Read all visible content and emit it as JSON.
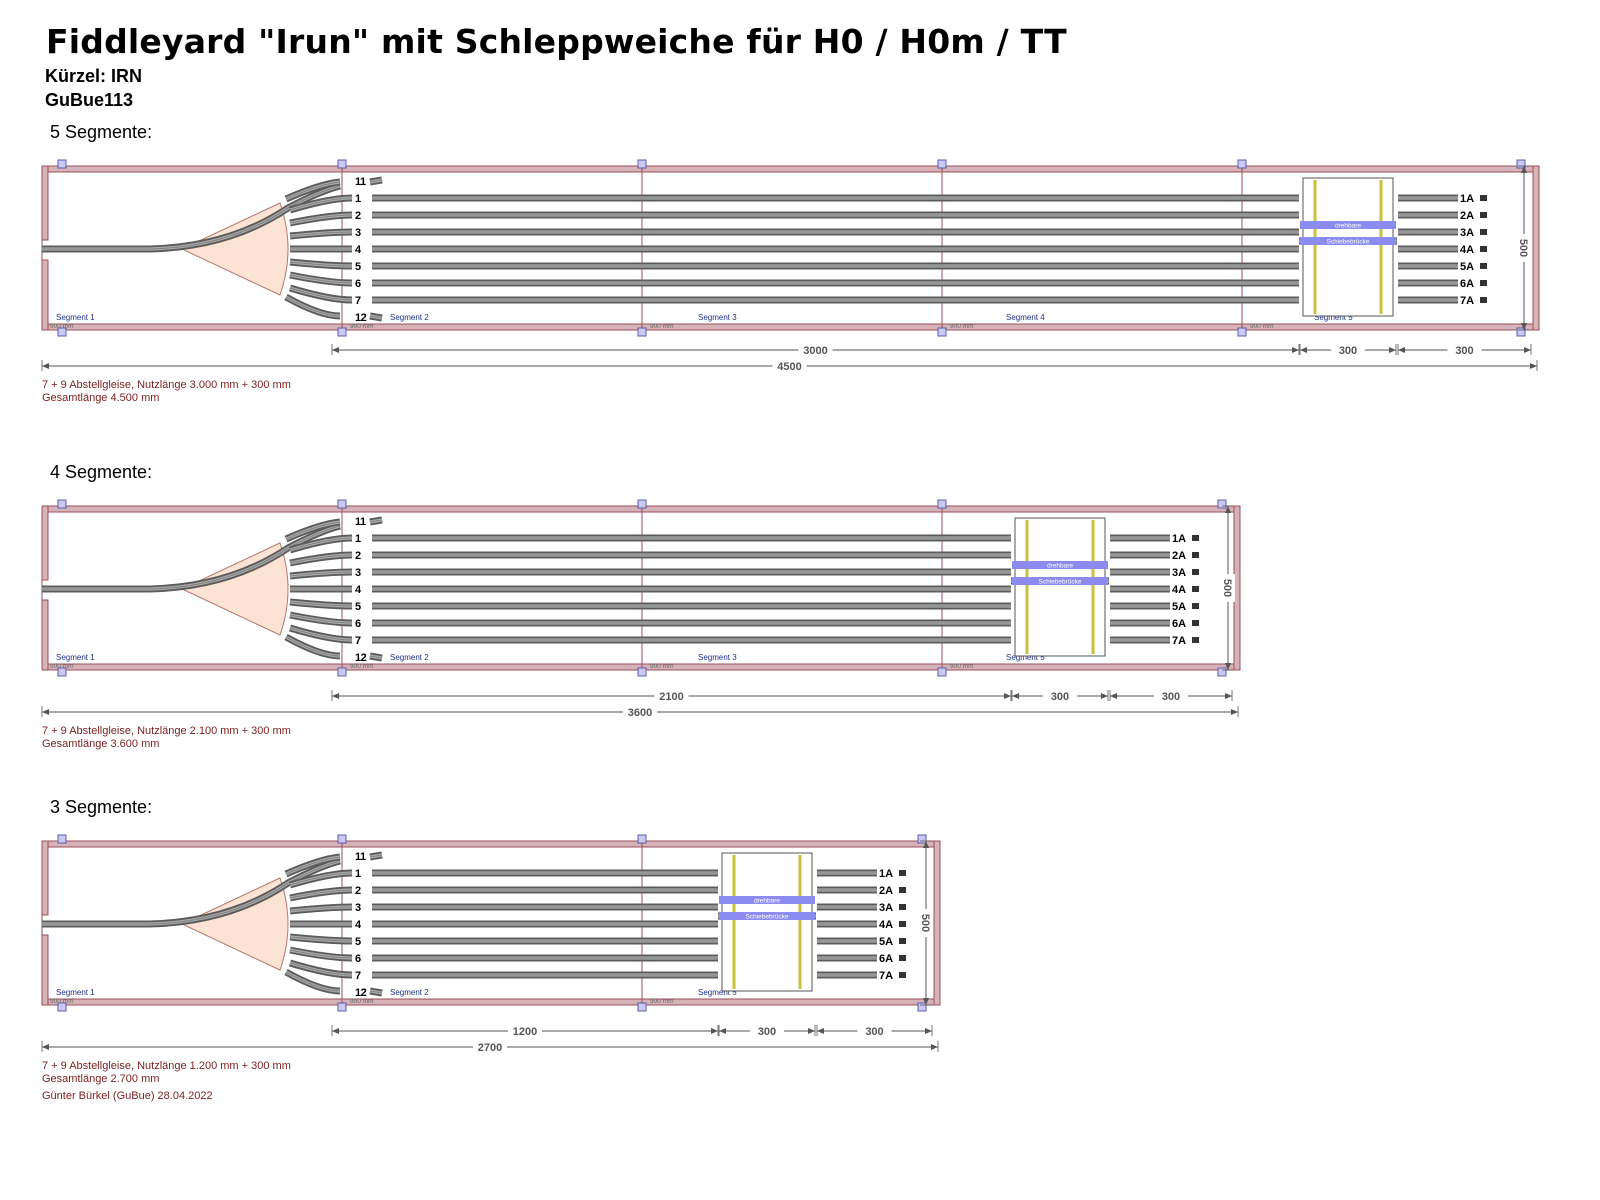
{
  "header": {
    "title": "Fiddleyard \"Irun\" mit Schleppweiche für H0 / H0m / TT",
    "shortcode": "Kürzel: IRN",
    "code": "GuBue113"
  },
  "colors": {
    "frame": "#9b4f5c",
    "frame_fill": "#d6b3b8",
    "track_tie": "#5c5c5c",
    "track_rail": "#a9a9a9",
    "fan": "#fde3d4",
    "bridge_band": "#8c8cf0",
    "bridge_rail": "#c7c23a",
    "dim": "#555555",
    "note": "#7a1f1f",
    "seg_label": "#1f2f8c"
  },
  "labels": {
    "track_left": [
      "11",
      "1",
      "2",
      "3",
      "4",
      "5",
      "6",
      "7",
      "12"
    ],
    "track_right": [
      "1A",
      "2A",
      "3A",
      "4A",
      "5A",
      "6A",
      "7A"
    ],
    "bridge_top": "drehbare",
    "bridge_bottom": "Schiebebrücke",
    "segment_length": "900 mm",
    "width_dim": "500",
    "bridge_dim": "300",
    "stub_dim": "300"
  },
  "layouts": [
    {
      "heading": "5 Segmente:",
      "segments": [
        "Segment 1",
        "Segment 2",
        "Segment 3",
        "Segment 4",
        "Segment 5"
      ],
      "usable_dim": "3000",
      "total_dim": "4500",
      "note1": "7 + 9 Abstellgleise, Nutzlänge 3.000 mm + 300 mm",
      "note2": "Gesamtlänge 4.500 mm"
    },
    {
      "heading": "4 Segmente:",
      "segments": [
        "Segment 1",
        "Segment 2",
        "Segment 3",
        "Segment 5"
      ],
      "usable_dim": "2100",
      "total_dim": "3600",
      "note1": "7 + 9 Abstellgleise, Nutzlänge 2.100 mm + 300 mm",
      "note2": "Gesamtlänge 3.600 mm"
    },
    {
      "heading": "3 Segmente:",
      "segments": [
        "Segment 1",
        "Segment 2",
        "Segment 5"
      ],
      "usable_dim": "1200",
      "total_dim": "2700",
      "note1": "7 + 9 Abstellgleise, Nutzlänge 1.200 mm + 300 mm",
      "note2": "Gesamtlänge 2.700 mm"
    }
  ],
  "footer": {
    "author": "Günter Bürkel (GuBue) 28.04.2022"
  }
}
